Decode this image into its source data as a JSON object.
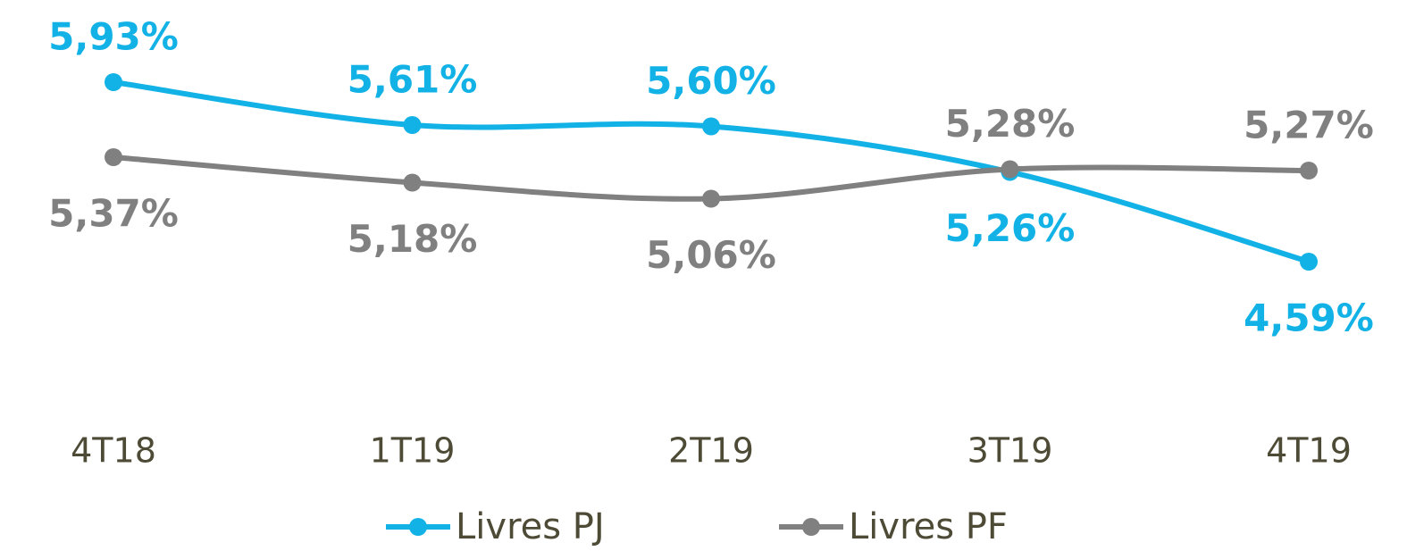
{
  "chart_data": {
    "type": "line",
    "categories": [
      "4T18",
      "1T19",
      "2T19",
      "3T19",
      "4T19"
    ],
    "series": [
      {
        "name": "Livres PJ",
        "color": "#12b2e6",
        "values": [
          5.93,
          5.61,
          5.6,
          5.26,
          4.59
        ],
        "value_labels": [
          "5,93%",
          "5,61%",
          "5,60%",
          "5,26%",
          "4,59%"
        ]
      },
      {
        "name": "Livres PF",
        "color": "#808080",
        "values": [
          5.37,
          5.18,
          5.06,
          5.28,
          5.27
        ],
        "value_labels": [
          "5,37%",
          "5,18%",
          "5,06%",
          "5,28%",
          "5,27%"
        ]
      }
    ],
    "legend": "bottom"
  }
}
